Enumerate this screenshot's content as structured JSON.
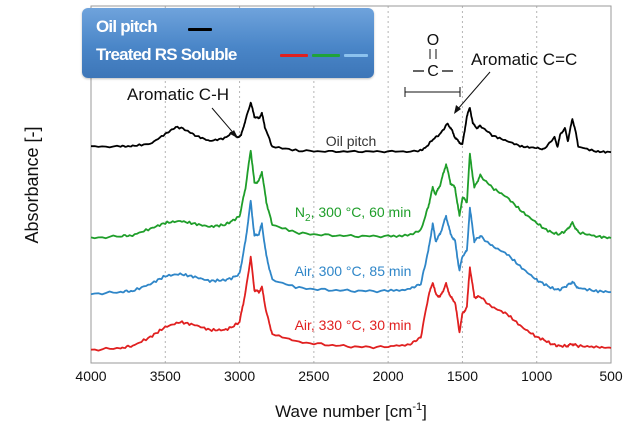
{
  "chart_data": {
    "type": "line",
    "xlabel": "Wave number [cm-1]",
    "xlabel_main": "Wave number [cm",
    "xlabel_sup": "-1",
    "xlabel_end": "]",
    "ylabel": "Absorbance [-]",
    "xlim": [
      4000,
      500
    ],
    "x_reversed": true,
    "grid": "vertical-dotted",
    "x_ticks": [
      "4000",
      "3500",
      "3000",
      "2500",
      "2000",
      "1500",
      "1000",
      "500"
    ],
    "x_tick_values": [
      4000,
      3500,
      3000,
      2500,
      2000,
      1500,
      1000,
      500
    ],
    "legend": {
      "placement": "top-left",
      "row1_label": "Oil pitch",
      "row2_label": "Treated RS Soluble"
    },
    "annotations": {
      "aromatic_ch": "Aromatic C-H",
      "aromatic_cc": "Aromatic C=C",
      "carbonyl_o": "O",
      "carbonyl_c": "C"
    },
    "series": [
      {
        "name": "Oil pitch",
        "color": "#000000",
        "label": "Oil pitch",
        "points": [
          [
            4000,
            0.12
          ],
          [
            3800,
            0.12
          ],
          [
            3720,
            0.13
          ],
          [
            3600,
            0.16
          ],
          [
            3500,
            0.3
          ],
          [
            3430,
            0.4
          ],
          [
            3380,
            0.38
          ],
          [
            3300,
            0.28
          ],
          [
            3200,
            0.2
          ],
          [
            3100,
            0.24
          ],
          [
            3050,
            0.32
          ],
          [
            3020,
            0.25
          ],
          [
            2990,
            0.28
          ],
          [
            2960,
            0.5
          ],
          [
            2925,
            0.75
          ],
          [
            2900,
            0.55
          ],
          [
            2870,
            0.52
          ],
          [
            2850,
            0.6
          ],
          [
            2830,
            0.4
          ],
          [
            2780,
            0.12
          ],
          [
            2600,
            0.06
          ],
          [
            2400,
            0.05
          ],
          [
            2200,
            0.05
          ],
          [
            2000,
            0.05
          ],
          [
            1800,
            0.05
          ],
          [
            1750,
            0.1
          ],
          [
            1700,
            0.22
          ],
          [
            1650,
            0.3
          ],
          [
            1600,
            0.45
          ],
          [
            1570,
            0.35
          ],
          [
            1550,
            0.25
          ],
          [
            1520,
            0.18
          ],
          [
            1500,
            0.15
          ],
          [
            1470,
            0.55
          ],
          [
            1450,
            0.68
          ],
          [
            1430,
            0.45
          ],
          [
            1400,
            0.38
          ],
          [
            1380,
            0.42
          ],
          [
            1300,
            0.28
          ],
          [
            1200,
            0.2
          ],
          [
            1100,
            0.12
          ],
          [
            1000,
            0.1
          ],
          [
            950,
            0.08
          ],
          [
            880,
            0.25
          ],
          [
            860,
            0.12
          ],
          [
            840,
            0.3
          ],
          [
            810,
            0.38
          ],
          [
            790,
            0.2
          ],
          [
            760,
            0.52
          ],
          [
            740,
            0.35
          ],
          [
            720,
            0.12
          ],
          [
            600,
            0.05
          ],
          [
            500,
            0.04
          ]
        ]
      },
      {
        "name": "N2, 300 °C, 60 min",
        "color": "#1f9e2a",
        "label": "N2, 300 °C, 60 min",
        "points": [
          [
            4000,
            0.02
          ],
          [
            3800,
            0.04
          ],
          [
            3720,
            0.05
          ],
          [
            3600,
            0.12
          ],
          [
            3500,
            0.18
          ],
          [
            3400,
            0.2
          ],
          [
            3300,
            0.17
          ],
          [
            3200,
            0.14
          ],
          [
            3100,
            0.16
          ],
          [
            3050,
            0.2
          ],
          [
            3000,
            0.25
          ],
          [
            2960,
            0.55
          ],
          [
            2925,
            0.95
          ],
          [
            2900,
            0.6
          ],
          [
            2870,
            0.62
          ],
          [
            2850,
            0.72
          ],
          [
            2820,
            0.4
          ],
          [
            2780,
            0.16
          ],
          [
            2600,
            0.07
          ],
          [
            2400,
            0.05
          ],
          [
            2200,
            0.04
          ],
          [
            2000,
            0.04
          ],
          [
            1850,
            0.05
          ],
          [
            1780,
            0.1
          ],
          [
            1730,
            0.35
          ],
          [
            1700,
            0.55
          ],
          [
            1680,
            0.48
          ],
          [
            1650,
            0.58
          ],
          [
            1610,
            0.8
          ],
          [
            1580,
            0.6
          ],
          [
            1550,
            0.55
          ],
          [
            1520,
            0.25
          ],
          [
            1500,
            0.45
          ],
          [
            1470,
            0.4
          ],
          [
            1450,
            0.9
          ],
          [
            1420,
            0.55
          ],
          [
            1380,
            0.68
          ],
          [
            1300,
            0.55
          ],
          [
            1200,
            0.45
          ],
          [
            1100,
            0.3
          ],
          [
            1000,
            0.18
          ],
          [
            950,
            0.12
          ],
          [
            900,
            0.08
          ],
          [
            850,
            0.06
          ],
          [
            800,
            0.1
          ],
          [
            760,
            0.18
          ],
          [
            720,
            0.08
          ],
          [
            600,
            0.04
          ],
          [
            500,
            0.02
          ]
        ]
      },
      {
        "name": "Air, 300 °C, 85 min",
        "color": "#2f86c8",
        "label": "Air, 300 °C, 85 min",
        "points": [
          [
            4000,
            0.02
          ],
          [
            3800,
            0.04
          ],
          [
            3720,
            0.05
          ],
          [
            3600,
            0.12
          ],
          [
            3500,
            0.2
          ],
          [
            3400,
            0.22
          ],
          [
            3300,
            0.19
          ],
          [
            3200,
            0.15
          ],
          [
            3100,
            0.16
          ],
          [
            3050,
            0.18
          ],
          [
            3000,
            0.22
          ],
          [
            2960,
            0.55
          ],
          [
            2925,
            0.95
          ],
          [
            2900,
            0.6
          ],
          [
            2870,
            0.62
          ],
          [
            2850,
            0.72
          ],
          [
            2820,
            0.4
          ],
          [
            2780,
            0.16
          ],
          [
            2600,
            0.08
          ],
          [
            2400,
            0.06
          ],
          [
            2200,
            0.05
          ],
          [
            2000,
            0.05
          ],
          [
            1850,
            0.07
          ],
          [
            1780,
            0.12
          ],
          [
            1730,
            0.45
          ],
          [
            1700,
            0.72
          ],
          [
            1680,
            0.55
          ],
          [
            1650,
            0.62
          ],
          [
            1610,
            0.8
          ],
          [
            1580,
            0.62
          ],
          [
            1550,
            0.55
          ],
          [
            1520,
            0.25
          ],
          [
            1500,
            0.4
          ],
          [
            1470,
            0.45
          ],
          [
            1450,
            0.88
          ],
          [
            1420,
            0.55
          ],
          [
            1380,
            0.6
          ],
          [
            1300,
            0.5
          ],
          [
            1200,
            0.42
          ],
          [
            1100,
            0.28
          ],
          [
            1000,
            0.16
          ],
          [
            950,
            0.12
          ],
          [
            900,
            0.08
          ],
          [
            850,
            0.06
          ],
          [
            800,
            0.1
          ],
          [
            760,
            0.14
          ],
          [
            720,
            0.08
          ],
          [
            600,
            0.05
          ],
          [
            500,
            0.04
          ]
        ]
      },
      {
        "name": "Air, 330 °C, 30 min",
        "color": "#e02020",
        "label": "Air, 330 °C, 30 min",
        "points": [
          [
            4000,
            0.02
          ],
          [
            3800,
            0.04
          ],
          [
            3720,
            0.06
          ],
          [
            3600,
            0.15
          ],
          [
            3500,
            0.25
          ],
          [
            3400,
            0.3
          ],
          [
            3300,
            0.27
          ],
          [
            3200,
            0.22
          ],
          [
            3100,
            0.22
          ],
          [
            3050,
            0.25
          ],
          [
            3000,
            0.3
          ],
          [
            2960,
            0.6
          ],
          [
            2925,
            0.95
          ],
          [
            2900,
            0.62
          ],
          [
            2870,
            0.6
          ],
          [
            2850,
            0.65
          ],
          [
            2820,
            0.4
          ],
          [
            2780,
            0.18
          ],
          [
            2600,
            0.1
          ],
          [
            2400,
            0.07
          ],
          [
            2200,
            0.05
          ],
          [
            2000,
            0.05
          ],
          [
            1850,
            0.08
          ],
          [
            1780,
            0.15
          ],
          [
            1730,
            0.55
          ],
          [
            1700,
            0.7
          ],
          [
            1680,
            0.58
          ],
          [
            1650,
            0.55
          ],
          [
            1610,
            0.68
          ],
          [
            1580,
            0.55
          ],
          [
            1550,
            0.5
          ],
          [
            1520,
            0.2
          ],
          [
            1500,
            0.38
          ],
          [
            1470,
            0.45
          ],
          [
            1450,
            0.85
          ],
          [
            1420,
            0.55
          ],
          [
            1380,
            0.55
          ],
          [
            1300,
            0.45
          ],
          [
            1200,
            0.38
          ],
          [
            1100,
            0.25
          ],
          [
            1000,
            0.15
          ],
          [
            950,
            0.12
          ],
          [
            900,
            0.08
          ],
          [
            850,
            0.06
          ],
          [
            800,
            0.06
          ],
          [
            760,
            0.08
          ],
          [
            720,
            0.06
          ],
          [
            600,
            0.05
          ],
          [
            500,
            0.04
          ]
        ]
      }
    ]
  }
}
